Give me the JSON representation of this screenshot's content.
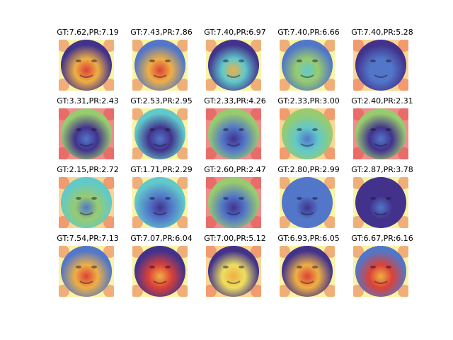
{
  "palette": {
    "hot": "#e0302a",
    "warm": "#f5b23a",
    "yellow": "#f4ea5a",
    "green": "#8fd36b",
    "cyan": "#4fd0d8",
    "blue": "#3d6fd6",
    "deep": "#2a1f8f",
    "skin": "#c9a07d"
  },
  "grid": {
    "rows": [
      [
        {
          "caption": "GT:7.62,PR:7.19",
          "face": "deep",
          "hotspots": [
            "hot",
            "warm"
          ],
          "border": "yellow"
        },
        {
          "caption": "GT:7.43,PR:7.86",
          "face": "blue",
          "hotspots": [
            "hot",
            "warm"
          ],
          "border": "yellow"
        },
        {
          "caption": "GT:7.40,PR:6.97",
          "face": "deep",
          "hotspots": [
            "warm",
            "cyan"
          ],
          "border": "yellow"
        },
        {
          "caption": "GT:7.40,PR:6.66",
          "face": "blue",
          "hotspots": [
            "cyan",
            "green"
          ],
          "border": "yellow"
        },
        {
          "caption": "GT:7.40,PR:5.28",
          "face": "deep",
          "hotspots": [
            "blue",
            "blue"
          ],
          "border": "warm"
        }
      ],
      [
        {
          "caption": "GT:3.31,PR:2.43",
          "face": "green",
          "hotspots": [
            "blue",
            "deep"
          ],
          "border": "hot"
        },
        {
          "caption": "GT:2.53,PR:2.95",
          "face": "cyan",
          "hotspots": [
            "blue",
            "deep"
          ],
          "border": "yellow"
        },
        {
          "caption": "GT:2.33,PR:4.26",
          "face": "green",
          "hotspots": [
            "deep",
            "blue"
          ],
          "border": "hot"
        },
        {
          "caption": "GT:2.33,PR:3.00",
          "face": "green",
          "hotspots": [
            "blue",
            "cyan"
          ],
          "border": "warm"
        },
        {
          "caption": "GT:2.40,PR:2.31",
          "face": "green",
          "hotspots": [
            "blue",
            "deep"
          ],
          "border": "hot"
        }
      ],
      [
        {
          "caption": "GT:2.15,PR:2.72",
          "face": "cyan",
          "hotspots": [
            "blue",
            "green"
          ],
          "border": "warm"
        },
        {
          "caption": "GT:1.71,PR:2.29",
          "face": "cyan",
          "hotspots": [
            "deep",
            "blue"
          ],
          "border": "yellow"
        },
        {
          "caption": "GT:2.60,PR:2.47",
          "face": "green",
          "hotspots": [
            "deep",
            "blue"
          ],
          "border": "hot"
        },
        {
          "caption": "GT:2.80,PR:2.99",
          "face": "blue",
          "hotspots": [
            "deep",
            "blue"
          ],
          "border": "yellow"
        },
        {
          "caption": "GT:2.87,PR:3.78",
          "face": "deep",
          "hotspots": [
            "blue",
            "deep"
          ],
          "border": "yellow"
        }
      ],
      [
        {
          "caption": "GT:7.54,PR:7.13",
          "face": "blue",
          "hotspots": [
            "hot",
            "warm"
          ],
          "border": "yellow"
        },
        {
          "caption": "GT:7.07,PR:6.04",
          "face": "deep",
          "hotspots": [
            "warm",
            "hot"
          ],
          "border": "yellow"
        },
        {
          "caption": "GT:7.00,PR:5.12",
          "face": "deep",
          "hotspots": [
            "warm",
            "yellow"
          ],
          "border": "warm"
        },
        {
          "caption": "GT:6.93,PR:6.05",
          "face": "deep",
          "hotspots": [
            "hot",
            "warm"
          ],
          "border": "yellow"
        },
        {
          "caption": "GT:6.67,PR:6.16",
          "face": "blue",
          "hotspots": [
            "warm",
            "hot"
          ],
          "border": "yellow"
        }
      ]
    ]
  }
}
